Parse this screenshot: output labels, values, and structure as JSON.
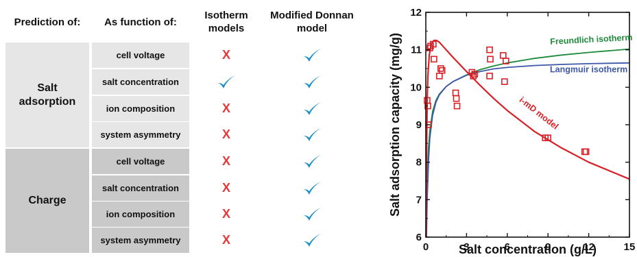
{
  "table": {
    "headers": {
      "prediction": "Prediction of:",
      "function": "As function of:",
      "isotherm": "Isotherm\nmodels",
      "donnan": "Modified Donnan\nmodel"
    },
    "groups": [
      {
        "name": "Salt\nadsorption",
        "rows": [
          {
            "condition": "cell voltage",
            "isotherm": "x",
            "donnan": "check"
          },
          {
            "condition": "salt concentration",
            "isotherm": "check",
            "donnan": "check"
          },
          {
            "condition": "ion composition",
            "isotherm": "x",
            "donnan": "check"
          },
          {
            "condition": "system asymmetry",
            "isotherm": "x",
            "donnan": "check"
          }
        ]
      },
      {
        "name": "Charge",
        "rows": [
          {
            "condition": "cell voltage",
            "isotherm": "x",
            "donnan": "check"
          },
          {
            "condition": "salt concentration",
            "isotherm": "x",
            "donnan": "check"
          },
          {
            "condition": "ion composition",
            "isotherm": "x",
            "donnan": "check"
          },
          {
            "condition": "system asymmetry",
            "isotherm": "x",
            "donnan": "check"
          }
        ]
      }
    ],
    "x_symbol": "X",
    "colors": {
      "x": "#e23a3a",
      "check": "#1e8fc6",
      "salt_bg": "#e6e6e6",
      "charge_bg": "#c9c9c9"
    }
  },
  "chart_data": {
    "type": "scatter",
    "xlabel": "Salt concentration (g/L)",
    "ylabel": "Salt adsorption capacity (mg/g)",
    "xlim": [
      0,
      15
    ],
    "ylim": [
      6,
      12
    ],
    "xticks": [
      0,
      3,
      6,
      9,
      12,
      15
    ],
    "yticks": [
      6,
      7,
      8,
      9,
      10,
      11,
      12
    ],
    "series": [
      {
        "name": "Freundlich isotherm",
        "kind": "line",
        "color": "#1d8a3a",
        "x": [
          0.05,
          0.1,
          0.2,
          0.3,
          0.5,
          0.75,
          1,
          1.5,
          2,
          3,
          4,
          5,
          6,
          8,
          10,
          12,
          15
        ],
        "y": [
          6.8,
          7.6,
          8.4,
          8.85,
          9.35,
          9.65,
          9.82,
          10.02,
          10.15,
          10.33,
          10.47,
          10.57,
          10.65,
          10.77,
          10.86,
          10.93,
          11.02
        ]
      },
      {
        "name": "Langmuir isotherm",
        "kind": "line",
        "color": "#3e57a8",
        "x": [
          0.05,
          0.1,
          0.2,
          0.3,
          0.5,
          0.75,
          1,
          1.5,
          2,
          3,
          4,
          5,
          6,
          8,
          10,
          12,
          15
        ],
        "y": [
          6.0,
          7.0,
          8.05,
          8.65,
          9.25,
          9.6,
          9.8,
          10.02,
          10.15,
          10.32,
          10.42,
          10.49,
          10.53,
          10.58,
          10.61,
          10.63,
          10.65
        ]
      },
      {
        "name": "i-mD model",
        "kind": "line",
        "color": "#d81f26",
        "x": [
          0.02,
          0.05,
          0.1,
          0.15,
          0.25,
          0.4,
          0.6,
          0.8,
          1,
          1.5,
          2,
          3,
          4,
          5,
          6,
          8,
          10,
          12,
          15
        ],
        "y": [
          6.0,
          8.0,
          9.6,
          10.3,
          10.85,
          11.15,
          11.25,
          11.25,
          11.2,
          11.0,
          10.8,
          10.42,
          10.05,
          9.7,
          9.38,
          8.82,
          8.38,
          8.0,
          7.55
        ]
      },
      {
        "name": "Data",
        "kind": "markers",
        "color": "#d81f26",
        "x": [
          0.1,
          0.15,
          0.2,
          0.3,
          0.35,
          0.55,
          0.6,
          1.0,
          1.1,
          1.2,
          2.2,
          2.25,
          2.3,
          3.4,
          3.5,
          3.6,
          4.7,
          4.75,
          4.7,
          5.7,
          5.9,
          5.8,
          8.8,
          9.0,
          11.7,
          11.8
        ],
        "y": [
          9.65,
          9.5,
          9.0,
          11.05,
          11.1,
          11.15,
          10.75,
          10.3,
          10.5,
          10.45,
          9.85,
          9.7,
          9.5,
          10.4,
          10.3,
          10.35,
          11.0,
          10.75,
          10.3,
          10.85,
          10.7,
          10.15,
          8.65,
          8.65,
          8.28,
          8.28
        ]
      }
    ],
    "annotations": [
      {
        "text": "Freundlich isotherm",
        "x": 12.2,
        "y": 11.2,
        "color": "#1d8a3a",
        "rotate": -3
      },
      {
        "text": "Langmuir isotherm",
        "x": 12.0,
        "y": 10.4,
        "color": "#3e57a8",
        "rotate": 0
      },
      {
        "text": "i-mD model",
        "x": 8.2,
        "y": 9.25,
        "color": "#d81f26",
        "rotate": 38
      }
    ]
  }
}
